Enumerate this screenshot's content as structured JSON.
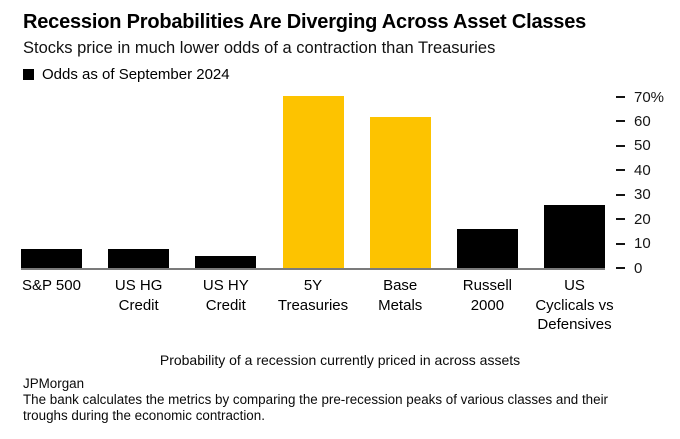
{
  "chart_data": {
    "type": "bar",
    "title": "Recession Probabilities Are Diverging Across Asset Classes",
    "subtitle": "Stocks price in much lower odds of a contraction than Treasuries",
    "legend": {
      "label": "Odds as of September 2024",
      "marker_color": "#000000",
      "position": "top-left"
    },
    "categories": [
      "S&P 500",
      "US HG Credit",
      "US HY Credit",
      "5Y Treasuries",
      "Base Metals",
      "Russell 2000",
      "US Cyclicals vs Defensives"
    ],
    "category_lines": [
      [
        "S&P 500"
      ],
      [
        "US HG",
        "Credit"
      ],
      [
        "US HY",
        "Credit"
      ],
      [
        "5Y",
        "Treasuries"
      ],
      [
        "Base",
        "Metals"
      ],
      [
        "Russell",
        "2000"
      ],
      [
        "US",
        "Cyclicals vs",
        "Defensives"
      ]
    ],
    "values": [
      8,
      8,
      5,
      70.5,
      62,
      16,
      26
    ],
    "bar_colors": [
      "#000000",
      "#000000",
      "#000000",
      "#fdc300",
      "#fdc300",
      "#000000",
      "#000000"
    ],
    "unit": "%",
    "y_ticks": [
      0,
      10,
      20,
      30,
      40,
      50,
      60,
      70
    ],
    "y_tick_labels": [
      "0",
      "10",
      "20",
      "30",
      "40",
      "50",
      "60",
      "70%"
    ],
    "ylim": [
      0,
      70
    ],
    "yaxis_side": "right",
    "grid": false,
    "xlabel": "Probability of a recession currently priced in across assets"
  },
  "source": "JPMorgan",
  "footnote": "The bank calculates the metrics by comparing the pre-recession peaks of various classes and their troughs during the economic contraction.",
  "colors": {
    "bar_black": "#000000",
    "bar_yellow": "#fdc300",
    "axis_line": "#7b7b7b",
    "background": "#ffffff",
    "text": "#000000"
  }
}
